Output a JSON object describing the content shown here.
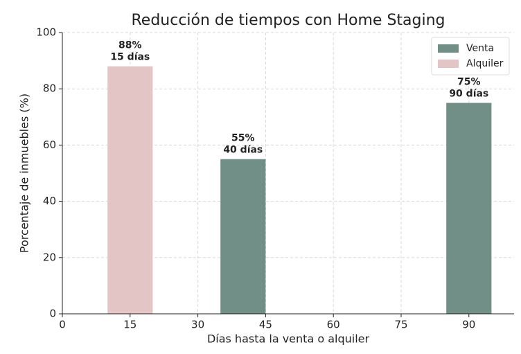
{
  "chart_data": {
    "type": "bar",
    "title": "Reducción de tiempos con Home Staging",
    "xlabel": "Días hasta la venta o alquiler",
    "ylabel": "Porcentaje de inmuebles (%)",
    "xlim": [
      0,
      100
    ],
    "xticks": [
      0,
      15,
      30,
      45,
      60,
      75,
      90
    ],
    "ylim": [
      0,
      100
    ],
    "yticks": [
      0,
      20,
      40,
      60,
      80,
      100
    ],
    "grid": true,
    "legend": "upper right",
    "series": [
      {
        "name": "Venta",
        "color": "#718f86",
        "label_color": "#718f86",
        "x": [
          40,
          90
        ],
        "values": [
          55,
          75
        ],
        "value_labels": [
          "55%",
          "75%"
        ],
        "x_labels": [
          "40 días",
          "90 días"
        ]
      },
      {
        "name": "Alquiler",
        "color": "#e4c5c5",
        "label_color": "#d9666b",
        "x": [
          15
        ],
        "values": [
          88
        ],
        "value_labels": [
          "88%"
        ],
        "x_labels": [
          "15 días"
        ]
      }
    ]
  }
}
